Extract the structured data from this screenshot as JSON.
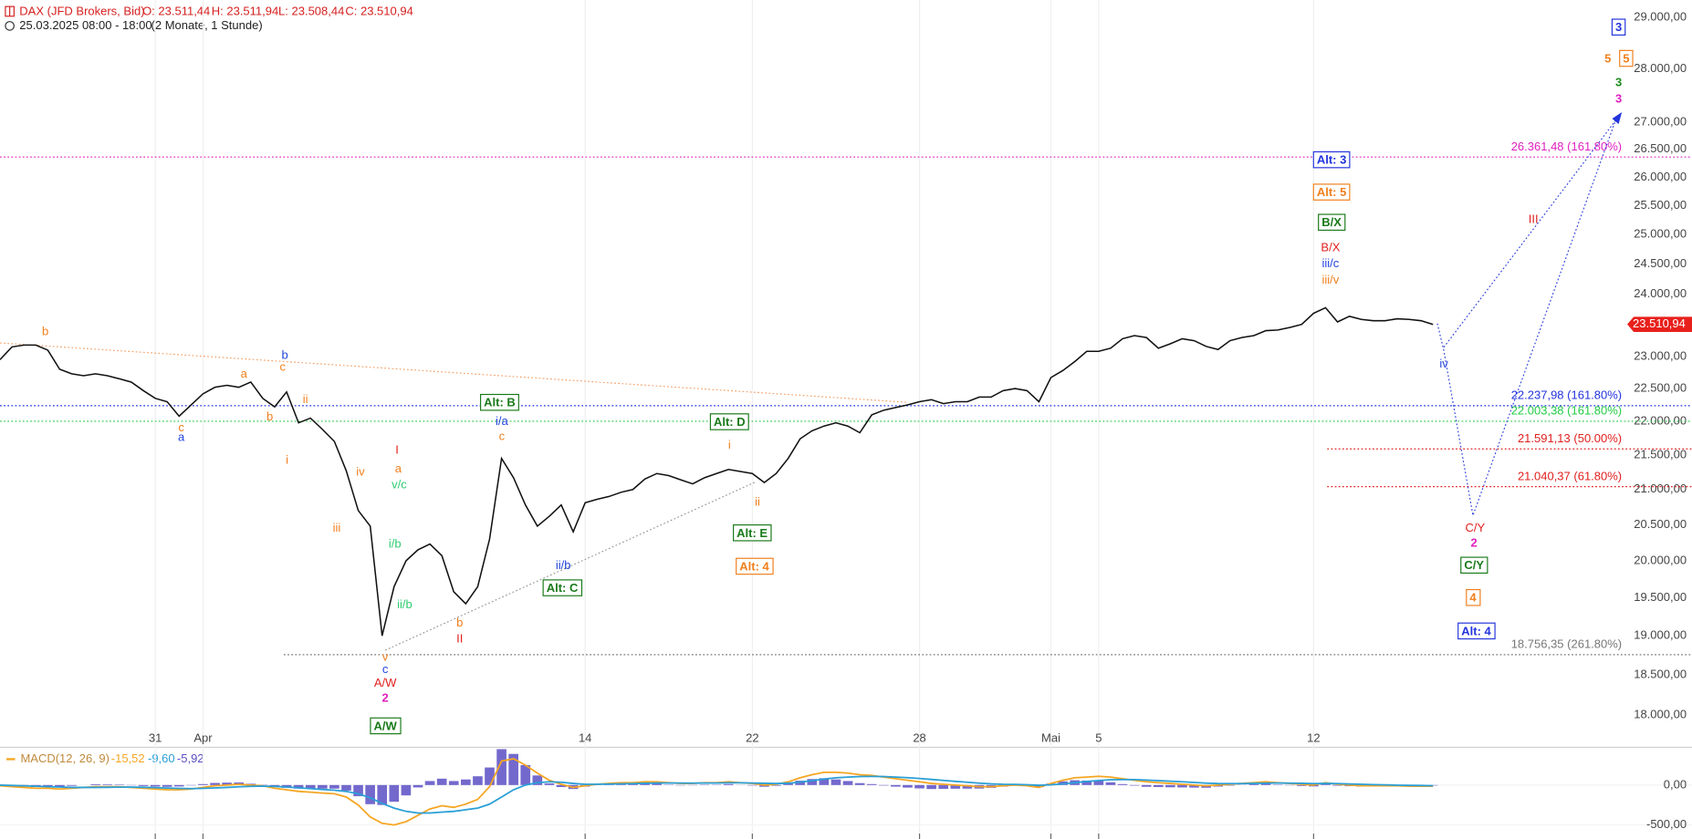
{
  "header": {
    "title": "DAX (JFD Brokers, Bid)",
    "ohlc": [
      "O: 23.511,44",
      "H: 23.511,94",
      "L: 23.508,44",
      "C: 23.510,94"
    ],
    "subtitle": "25.03.2025 08:00 - 18:00",
    "period": "(2 Monate, 1 Stunde)"
  },
  "chart_data": [
    {
      "type": "line",
      "log_scale": true,
      "categories": [
        null,
        null,
        null,
        null,
        null,
        null,
        null,
        null,
        null,
        null,
        null,
        null,
        null,
        "31",
        null,
        null,
        null,
        "Apr",
        null,
        null,
        null,
        null,
        null,
        null,
        null,
        null,
        null,
        null,
        null,
        null,
        null,
        null,
        null,
        null,
        null,
        null,
        null,
        null,
        null,
        null,
        null,
        null,
        null,
        null,
        null,
        null,
        null,
        null,
        null,
        "14",
        null,
        null,
        null,
        null,
        null,
        null,
        null,
        null,
        null,
        null,
        null,
        null,
        null,
        "22",
        null,
        null,
        null,
        null,
        null,
        null,
        null,
        null,
        null,
        null,
        null,
        null,
        null,
        "28",
        null,
        null,
        null,
        null,
        null,
        null,
        null,
        null,
        null,
        null,
        "Mai",
        null,
        null,
        null,
        "5",
        null,
        null,
        null,
        null,
        null,
        null,
        null,
        null,
        null,
        null,
        null,
        null,
        null,
        null,
        null,
        null,
        null,
        "12",
        null,
        null,
        null,
        null,
        null,
        null,
        null,
        null,
        null,
        null
      ],
      "series": [
        {
          "color": "#111111",
          "values": [
            22950,
            23150,
            23180,
            23180,
            23100,
            22800,
            22730,
            22700,
            22730,
            22700,
            22650,
            22600,
            22470,
            22350,
            22300,
            22080,
            22250,
            22420,
            22520,
            22550,
            22520,
            22600,
            22350,
            22220,
            22450,
            21980,
            22050,
            21880,
            21700,
            21270,
            20700,
            20480,
            19000,
            19650,
            20000,
            20150,
            20230,
            20070,
            19580,
            19420,
            19650,
            20300,
            21450,
            21170,
            20780,
            20480,
            20620,
            20780,
            20400,
            20810,
            20860,
            20900,
            20960,
            21000,
            21150,
            21230,
            21200,
            21140,
            21080,
            21170,
            21230,
            21290,
            21260,
            21230,
            21100,
            21230,
            21450,
            21740,
            21860,
            21930,
            21980,
            21930,
            21830,
            22100,
            22170,
            22210,
            22250,
            22300,
            22330,
            22270,
            22300,
            22300,
            22370,
            22370,
            22470,
            22500,
            22470,
            22300,
            22670,
            22780,
            22920,
            23080,
            23080,
            23130,
            23280,
            23330,
            23300,
            23130,
            23200,
            23280,
            23250,
            23160,
            23110,
            23250,
            23300,
            23330,
            23410,
            23420,
            23460,
            23510,
            23690,
            23780,
            23550,
            23640,
            23590,
            23570,
            23570,
            23600,
            23590,
            23570,
            23511
          ]
        }
      ],
      "ylim": [
        17840,
        29350
      ],
      "yticks": [
        {
          "value": 18000,
          "label": "18.000,00"
        },
        {
          "value": 18500,
          "label": "18.500,00"
        },
        {
          "value": 19000,
          "label": "19.000,00"
        },
        {
          "value": 19500,
          "label": "19.500,00"
        },
        {
          "value": 20000,
          "label": "20.000,00"
        },
        {
          "value": 20500,
          "label": "20.500,00"
        },
        {
          "value": 21000,
          "label": "21.000,00"
        },
        {
          "value": 21500,
          "label": "21.500,00"
        },
        {
          "value": 22000,
          "label": "22.000,00"
        },
        {
          "value": 22500,
          "label": "22.500,00"
        },
        {
          "value": 23000,
          "label": "23.000,00"
        },
        {
          "value": 23500,
          "label": "23.500,00"
        },
        {
          "value": 24000,
          "label": "24.000,00"
        },
        {
          "value": 24500,
          "label": "24.500,00"
        },
        {
          "value": 25000,
          "label": "25.000,00"
        },
        {
          "value": 25500,
          "label": "25.500,00"
        },
        {
          "value": 26000,
          "label": "26.000,00"
        },
        {
          "value": 26500,
          "label": "26.500,00"
        },
        {
          "value": 27000,
          "label": "27.000,00"
        },
        {
          "value": 28000,
          "label": "28.000,00"
        },
        {
          "value": 29000,
          "label": "29.000,00"
        }
      ],
      "last_price": {
        "value": 23510.94,
        "label": "23.510,94",
        "color": "#e8201c"
      },
      "levels": [
        {
          "value": 26361.48,
          "label": "26.361,48 (161.80%)",
          "color": "#e020c0"
        },
        {
          "value": 22237.98,
          "label": "22.237,98 (161.80%)",
          "color": "#2233dd"
        },
        {
          "value": 22003.38,
          "label": "22.003,38 (161.80%)",
          "color": "#22cc44"
        },
        {
          "value": 21591.13,
          "label": "21.591,13 (50.00%)",
          "color": "#e0201e"
        },
        {
          "value": 21040.37,
          "label": "21.040,37 (61.80%)",
          "color": "#e0201e"
        },
        {
          "value": 18756.35,
          "label": "18.756,35 (261.80%)",
          "color": "#777777"
        }
      ],
      "annotations": [
        {
          "text": "b",
          "color": "#f07f1c",
          "style": "small"
        },
        {
          "text": "a",
          "color": "#f07f1c",
          "style": "small"
        },
        {
          "text": "c",
          "color": "#f07f1c",
          "style": "small"
        },
        {
          "text": "a",
          "color": "#2244dd",
          "style": "small"
        },
        {
          "text": "b",
          "color": "#2244dd",
          "style": "small"
        },
        {
          "text": "c",
          "color": "#f07f1c",
          "style": "small"
        },
        {
          "text": "ii",
          "color": "#f07f1c",
          "style": "small"
        },
        {
          "text": "b",
          "color": "#f07f1c",
          "style": "small"
        },
        {
          "text": "i",
          "color": "#f07f1c",
          "style": "small"
        },
        {
          "text": "iv",
          "color": "#f07f1c",
          "style": "small"
        },
        {
          "text": "iii",
          "color": "#f07f1c",
          "style": "small"
        },
        {
          "text": "I",
          "color": "#e0201e",
          "style": "small"
        },
        {
          "text": "a",
          "color": "#f07f1c",
          "style": "small"
        },
        {
          "text": "v/c",
          "color": "#2ecc71",
          "style": "small"
        },
        {
          "text": "i/b",
          "color": "#2ecc71",
          "style": "small"
        },
        {
          "text": "ii/b",
          "color": "#2ecc71",
          "style": "small"
        },
        {
          "text": "v",
          "color": "#f07f1c",
          "style": "small"
        },
        {
          "text": "c",
          "color": "#2244dd",
          "style": "small"
        },
        {
          "text": "A/W",
          "color": "#e0201e",
          "style": "small"
        },
        {
          "text": "2",
          "color": "#e020c0",
          "style": "bold"
        },
        {
          "text": "b",
          "color": "#f07f1c",
          "style": "small"
        },
        {
          "text": "II",
          "color": "#e0201e",
          "style": "small"
        },
        {
          "text": "i/a",
          "color": "#2244dd",
          "style": "small"
        },
        {
          "text": "c",
          "color": "#f07f1c",
          "style": "small"
        },
        {
          "text": "ii/b",
          "color": "#2244dd",
          "style": "small"
        },
        {
          "text": "i",
          "color": "#f07f1c",
          "style": "small"
        },
        {
          "text": "ii",
          "color": "#f07f1c",
          "style": "small"
        },
        {
          "text": "B/X",
          "color": "#e0201e",
          "style": "small"
        },
        {
          "text": "iii/c",
          "color": "#2244dd",
          "style": "small"
        },
        {
          "text": "iii/v",
          "color": "#f07f1c",
          "style": "small"
        },
        {
          "text": "iv",
          "color": "#2244dd",
          "style": "small"
        },
        {
          "text": "III",
          "color": "#e0201e",
          "style": "small"
        },
        {
          "text": "C/Y",
          "color": "#e0201e",
          "style": "small"
        },
        {
          "text": "2",
          "color": "#e020c0",
          "style": "bold"
        },
        {
          "text": "3",
          "color": "#1a8a1a",
          "style": "bold"
        },
        {
          "text": "3",
          "color": "#e020c0",
          "style": "bold"
        },
        {
          "text": "5",
          "color": "#f07f1c",
          "style": "large"
        },
        {
          "text": "A/W",
          "color": "#1a7a1a",
          "style": "box"
        },
        {
          "text": "Alt: B",
          "color": "#1a7a1a",
          "style": "box"
        },
        {
          "text": "Alt: C",
          "color": "#1a7a1a",
          "style": "box"
        },
        {
          "text": "Alt: D",
          "color": "#1a7a1a",
          "style": "box"
        },
        {
          "text": "Alt: E",
          "color": "#1a7a1a",
          "style": "box"
        },
        {
          "text": "Alt: 4",
          "color": "#f07f1c",
          "style": "boxlarge"
        },
        {
          "text": "Alt: 3",
          "color": "#2233dd",
          "style": "boxlarge"
        },
        {
          "text": "Alt: 5",
          "color": "#f07f1c",
          "style": "boxlarge"
        },
        {
          "text": "B/X",
          "color": "#1a7a1a",
          "style": "box"
        },
        {
          "text": "C/Y",
          "color": "#1a7a1a",
          "style": "box"
        },
        {
          "text": "4",
          "color": "#f07f1c",
          "style": "boxlarge"
        },
        {
          "text": "Alt: 4",
          "color": "#2233dd",
          "style": "boxlarge"
        },
        {
          "text": "3",
          "color": "#2233dd",
          "style": "boxlarge"
        },
        {
          "text": "5",
          "color": "#f07f1c",
          "style": "boxlarge"
        }
      ]
    },
    {
      "type": "macd",
      "title": "MACD(12, 26, 9)",
      "series": [
        {
          "color": "#5b4fc4",
          "style": "histogram",
          "legend": "-5,92",
          "values": [
            -10,
            -15,
            -20,
            -25,
            -20,
            -25,
            -10,
            0,
            10,
            8,
            6,
            -4,
            -12,
            -18,
            -22,
            -18,
            -5,
            12,
            26,
            30,
            32,
            16,
            4,
            -22,
            -35,
            -45,
            -45,
            -45,
            -45,
            -70,
            -140,
            -240,
            -250,
            -210,
            -130,
            -30,
            50,
            80,
            50,
            70,
            110,
            220,
            450,
            390,
            250,
            120,
            20,
            -25,
            -50,
            -20,
            0,
            8,
            15,
            12,
            18,
            15,
            4,
            -5,
            -4,
            5,
            4,
            12,
            2,
            -6,
            -21,
            -9,
            17,
            54,
            75,
            85,
            70,
            50,
            24,
            12,
            -6,
            -20,
            -32,
            -42,
            -50,
            -48,
            -46,
            -45,
            -44,
            -35,
            -20,
            -8,
            -14,
            -27,
            18,
            46,
            60,
            56,
            53,
            34,
            12,
            -7,
            -22,
            -25,
            -28,
            -30,
            -32,
            -34,
            -19,
            -7,
            2,
            10,
            16,
            5,
            -4,
            -11,
            -17,
            10,
            -8,
            -14,
            -19,
            -15,
            -12,
            -9,
            -11,
            -9,
            -5.92
          ]
        },
        {
          "color": "#f5a623",
          "style": "line",
          "legend": "-15,52",
          "values": [
            -10,
            -20,
            -30,
            -40,
            -40,
            -50,
            -40,
            -30,
            -20,
            -20,
            -20,
            -30,
            -40,
            -50,
            -60,
            -60,
            -50,
            -30,
            -10,
            0,
            10,
            0,
            -10,
            -40,
            -60,
            -80,
            -90,
            -100,
            -110,
            -150,
            -250,
            -400,
            -480,
            -500,
            -460,
            -380,
            -300,
            -260,
            -280,
            -240,
            -180,
            -20,
            300,
            330,
            250,
            150,
            60,
            10,
            -30,
            -10,
            10,
            20,
            30,
            30,
            40,
            40,
            30,
            20,
            20,
            30,
            30,
            40,
            30,
            20,
            0,
            10,
            40,
            90,
            130,
            160,
            160,
            150,
            130,
            120,
            100,
            80,
            60,
            40,
            20,
            10,
            0,
            -10,
            -20,
            -20,
            -10,
            0,
            -10,
            -30,
            20,
            60,
            90,
            100,
            110,
            100,
            80,
            60,
            40,
            30,
            20,
            10,
            0,
            -10,
            0,
            10,
            20,
            30,
            40,
            30,
            20,
            10,
            0,
            30,
            10,
            0,
            -10,
            -10,
            -10,
            -10,
            -15,
            -15,
            -15.52
          ]
        },
        {
          "color": "#2a9fd6",
          "style": "line",
          "legend": "-9,60",
          "values": [
            0,
            -5,
            -10,
            -15,
            -20,
            -25,
            -30,
            -30,
            -30,
            -28,
            -26,
            -26,
            -28,
            -32,
            -38,
            -42,
            -45,
            -42,
            -36,
            -30,
            -22,
            -16,
            -14,
            -18,
            -25,
            -35,
            -45,
            -55,
            -65,
            -80,
            -110,
            -160,
            -230,
            -290,
            -330,
            -350,
            -350,
            -340,
            -330,
            -310,
            -290,
            -240,
            -150,
            -60,
            0,
            30,
            40,
            35,
            20,
            10,
            10,
            12,
            15,
            18,
            22,
            25,
            26,
            25,
            24,
            25,
            26,
            28,
            28,
            26,
            21,
            19,
            23,
            36,
            55,
            75,
            90,
            100,
            106,
            108,
            106,
            100,
            92,
            82,
            70,
            58,
            46,
            35,
            24,
            15,
            10,
            8,
            4,
            -3,
            2,
            14,
            30,
            44,
            57,
            66,
            68,
            67,
            62,
            55,
            48,
            40,
            32,
            24,
            19,
            17,
            18,
            20,
            24,
            25,
            24,
            21,
            17,
            20,
            18,
            14,
            9,
            5,
            2,
            -1,
            -4,
            -6,
            -9.6
          ]
        }
      ],
      "ylim": [
        -676,
        473
      ],
      "yticks": [
        {
          "value": 0,
          "label": "0,00"
        },
        {
          "value": -500,
          "label": "-500,00"
        }
      ]
    }
  ]
}
